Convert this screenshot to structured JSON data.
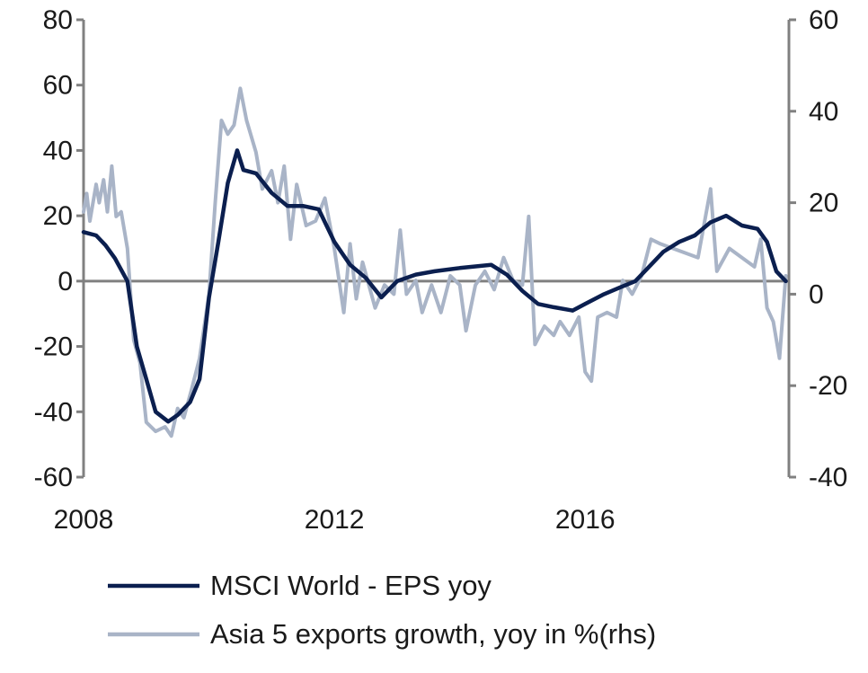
{
  "chart_data": {
    "type": "line",
    "title": "",
    "x_ticks": [
      "2008",
      "2012",
      "2016"
    ],
    "x_range": [
      2008.0,
      2019.25
    ],
    "y_left": {
      "min": -60,
      "max": 80,
      "ticks": [
        80,
        60,
        40,
        20,
        0,
        -20,
        -40,
        -60
      ]
    },
    "y_right": {
      "min": -40,
      "max": 60,
      "ticks": [
        60,
        40,
        20,
        0,
        -20,
        -40
      ]
    },
    "zero_line": true,
    "grid": false,
    "legend_position": "bottom",
    "series": [
      {
        "name": "MSCI World - EPS yoy",
        "axis": "left",
        "color": "#0b1f4f",
        "points": [
          [
            2008.0,
            15
          ],
          [
            2008.2,
            14
          ],
          [
            2008.35,
            11
          ],
          [
            2008.5,
            7
          ],
          [
            2008.7,
            0
          ],
          [
            2008.85,
            -20
          ],
          [
            2009.0,
            -30
          ],
          [
            2009.15,
            -40
          ],
          [
            2009.35,
            -43
          ],
          [
            2009.5,
            -41
          ],
          [
            2009.7,
            -37
          ],
          [
            2009.85,
            -30
          ],
          [
            2010.0,
            -5
          ],
          [
            2010.15,
            12
          ],
          [
            2010.3,
            30
          ],
          [
            2010.45,
            40
          ],
          [
            2010.55,
            34
          ],
          [
            2010.75,
            33
          ],
          [
            2011.0,
            27
          ],
          [
            2011.25,
            23
          ],
          [
            2011.5,
            23
          ],
          [
            2011.75,
            22
          ],
          [
            2012.0,
            12
          ],
          [
            2012.25,
            5
          ],
          [
            2012.5,
            1
          ],
          [
            2012.75,
            -5
          ],
          [
            2013.0,
            0
          ],
          [
            2013.3,
            2
          ],
          [
            2013.6,
            3
          ],
          [
            2014.0,
            4
          ],
          [
            2014.5,
            5
          ],
          [
            2014.75,
            2
          ],
          [
            2015.0,
            -3
          ],
          [
            2015.25,
            -7
          ],
          [
            2015.5,
            -8
          ],
          [
            2015.8,
            -9
          ],
          [
            2016.0,
            -7
          ],
          [
            2016.3,
            -4
          ],
          [
            2016.55,
            -2
          ],
          [
            2016.8,
            0
          ],
          [
            2017.0,
            4
          ],
          [
            2017.25,
            9
          ],
          [
            2017.5,
            12
          ],
          [
            2017.75,
            14
          ],
          [
            2018.0,
            18
          ],
          [
            2018.25,
            20
          ],
          [
            2018.5,
            17
          ],
          [
            2018.75,
            16
          ],
          [
            2018.9,
            12
          ],
          [
            2019.05,
            3
          ],
          [
            2019.2,
            0
          ]
        ]
      },
      {
        "name": "Asia 5 exports growth, yoy in %(rhs)",
        "axis": "right",
        "color": "#a9b4c7",
        "points": [
          [
            2008.0,
            18
          ],
          [
            2008.05,
            22
          ],
          [
            2008.1,
            16
          ],
          [
            2008.2,
            24
          ],
          [
            2008.25,
            20
          ],
          [
            2008.32,
            25
          ],
          [
            2008.38,
            18
          ],
          [
            2008.45,
            28
          ],
          [
            2008.52,
            17
          ],
          [
            2008.6,
            18
          ],
          [
            2008.7,
            10
          ],
          [
            2008.8,
            -10
          ],
          [
            2008.9,
            -15
          ],
          [
            2009.0,
            -28
          ],
          [
            2009.15,
            -30
          ],
          [
            2009.3,
            -29
          ],
          [
            2009.4,
            -31
          ],
          [
            2009.5,
            -25
          ],
          [
            2009.6,
            -27
          ],
          [
            2009.72,
            -21
          ],
          [
            2009.85,
            -14
          ],
          [
            2010.0,
            0
          ],
          [
            2010.1,
            20
          ],
          [
            2010.2,
            38
          ],
          [
            2010.3,
            35
          ],
          [
            2010.4,
            37
          ],
          [
            2010.5,
            45
          ],
          [
            2010.6,
            38
          ],
          [
            2010.75,
            31
          ],
          [
            2010.85,
            23
          ],
          [
            2011.0,
            27
          ],
          [
            2011.1,
            20
          ],
          [
            2011.2,
            28
          ],
          [
            2011.3,
            12
          ],
          [
            2011.4,
            24
          ],
          [
            2011.55,
            15
          ],
          [
            2011.7,
            16
          ],
          [
            2011.85,
            21
          ],
          [
            2012.0,
            10
          ],
          [
            2012.15,
            -4
          ],
          [
            2012.25,
            11
          ],
          [
            2012.35,
            -1
          ],
          [
            2012.45,
            7
          ],
          [
            2012.55,
            2
          ],
          [
            2012.65,
            -3
          ],
          [
            2012.8,
            2
          ],
          [
            2012.95,
            0
          ],
          [
            2013.05,
            14
          ],
          [
            2013.15,
            0
          ],
          [
            2013.3,
            3
          ],
          [
            2013.4,
            -4
          ],
          [
            2013.55,
            2
          ],
          [
            2013.7,
            -4
          ],
          [
            2013.85,
            4
          ],
          [
            2014.0,
            2
          ],
          [
            2014.1,
            -8
          ],
          [
            2014.25,
            2
          ],
          [
            2014.4,
            5
          ],
          [
            2014.55,
            1
          ],
          [
            2014.7,
            8
          ],
          [
            2014.85,
            3
          ],
          [
            2015.0,
            2
          ],
          [
            2015.1,
            17
          ],
          [
            2015.2,
            -11
          ],
          [
            2015.35,
            -7
          ],
          [
            2015.5,
            -9
          ],
          [
            2015.6,
            -6
          ],
          [
            2015.75,
            -9
          ],
          [
            2015.9,
            -5
          ],
          [
            2016.0,
            -17
          ],
          [
            2016.1,
            -19
          ],
          [
            2016.2,
            -5
          ],
          [
            2016.35,
            -4
          ],
          [
            2016.5,
            -5
          ],
          [
            2016.6,
            3
          ],
          [
            2016.75,
            0
          ],
          [
            2016.9,
            4
          ],
          [
            2017.05,
            12
          ],
          [
            2017.2,
            11
          ],
          [
            2017.4,
            10
          ],
          [
            2017.6,
            9
          ],
          [
            2017.8,
            8
          ],
          [
            2018.0,
            23
          ],
          [
            2018.1,
            5
          ],
          [
            2018.3,
            10
          ],
          [
            2018.5,
            8
          ],
          [
            2018.7,
            6
          ],
          [
            2018.8,
            12
          ],
          [
            2018.9,
            -3
          ],
          [
            2019.0,
            -6
          ],
          [
            2019.1,
            -14
          ],
          [
            2019.2,
            4
          ]
        ]
      }
    ]
  }
}
